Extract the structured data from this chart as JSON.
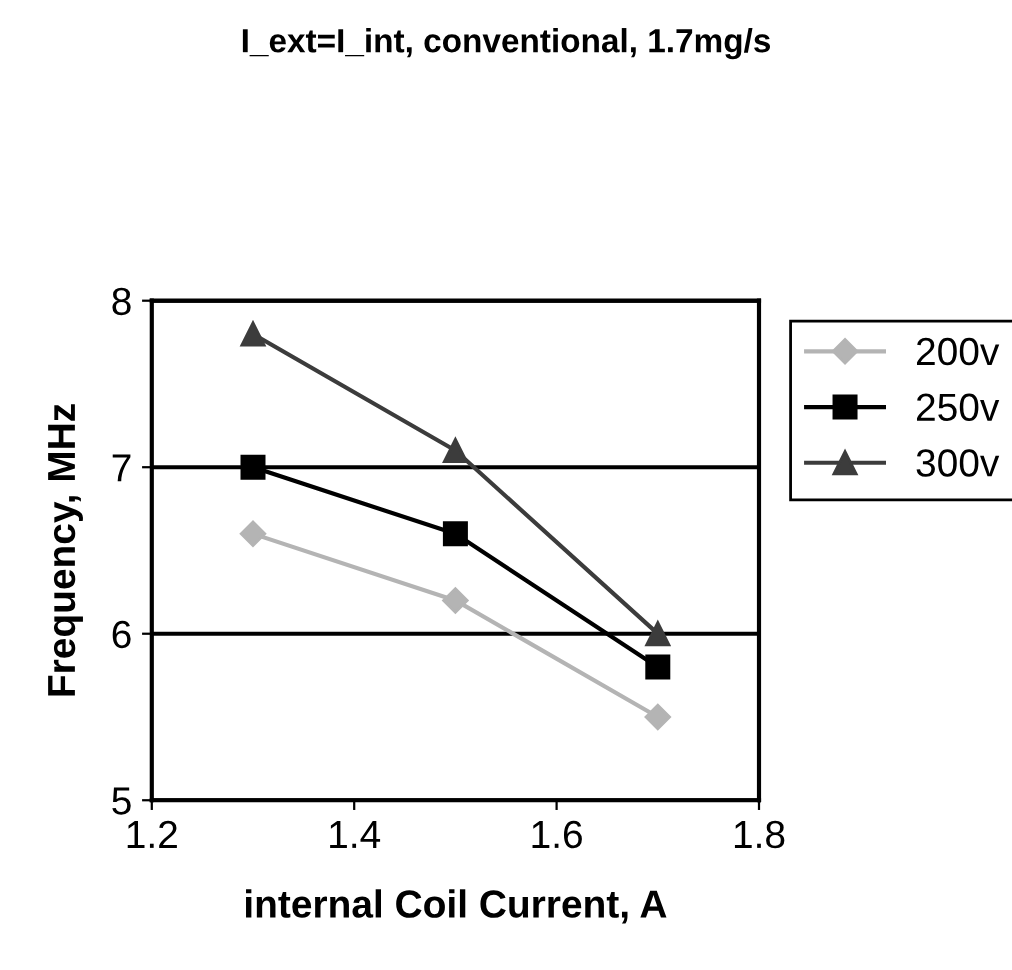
{
  "chart_data": {
    "type": "line",
    "title": "I_ext=I_int, conventional, 1.7mg/s",
    "xlabel": "internal Coil Current, A",
    "ylabel": "Frequency, MHz",
    "x": [
      1.3,
      1.5,
      1.7
    ],
    "series": [
      {
        "name": "200v",
        "color": "#b4b4b4",
        "marker": "diamond",
        "values": [
          6.6,
          6.2,
          5.5
        ]
      },
      {
        "name": "250v",
        "color": "#000000",
        "marker": "square",
        "values": [
          7.0,
          6.6,
          5.8
        ]
      },
      {
        "name": "300v",
        "color": "#3c3c3c",
        "marker": "triangle",
        "values": [
          7.8,
          7.1,
          6.0
        ]
      }
    ],
    "xlim": [
      1.2,
      1.8
    ],
    "xticks": [
      1.2,
      1.4,
      1.6,
      1.8
    ],
    "ylim": [
      5,
      8
    ],
    "yticks": [
      5,
      6,
      7,
      8
    ],
    "grid": "y",
    "legend": "right",
    "line_style": "solid"
  }
}
